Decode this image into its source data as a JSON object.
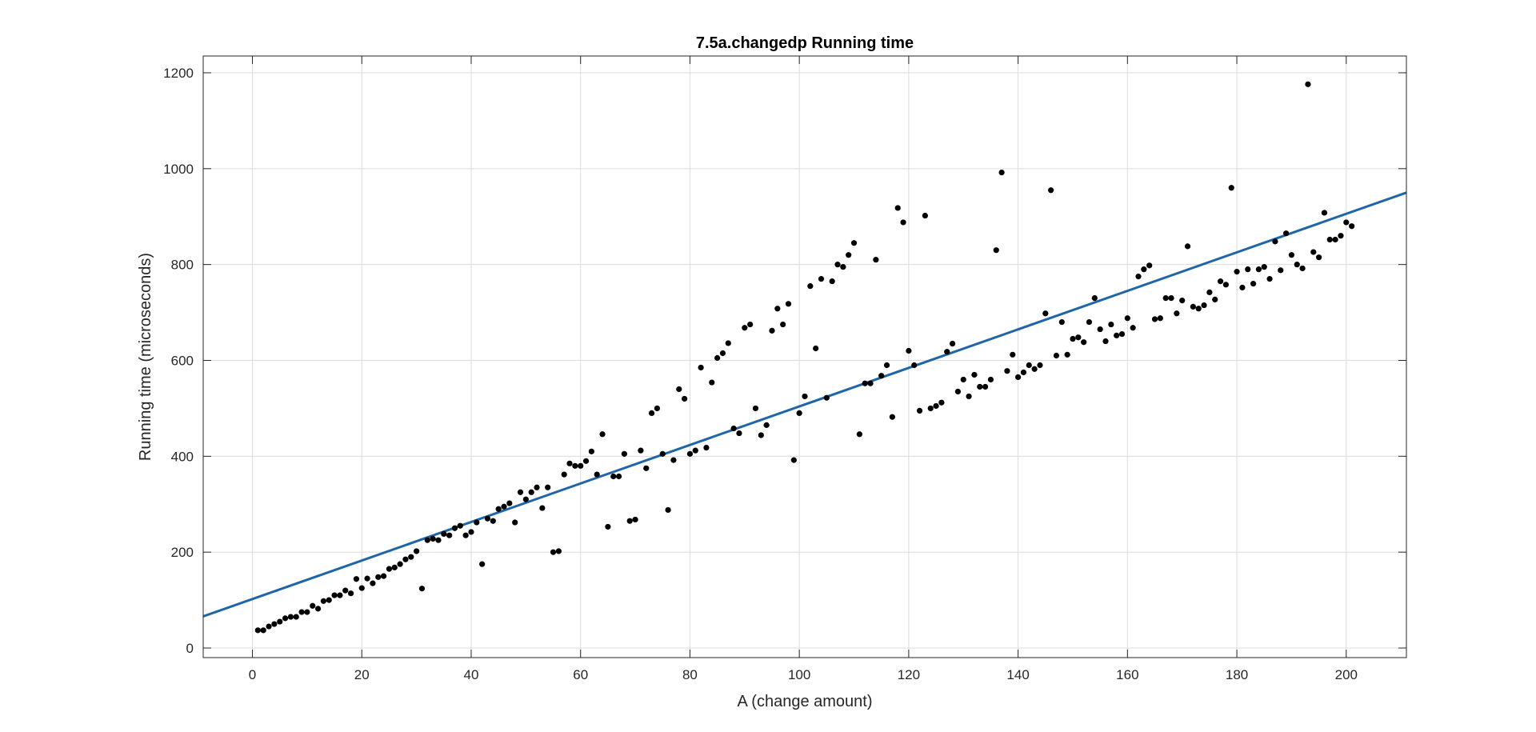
{
  "chart_data": {
    "type": "scatter",
    "title": "7.5a.changedp Running time",
    "xlabel": "A (change amount)",
    "ylabel": "Running time (microseconds)",
    "xlim": [
      -9,
      211
    ],
    "ylim": [
      -20,
      1235
    ],
    "xticks": [
      0,
      20,
      40,
      60,
      80,
      100,
      120,
      140,
      160,
      180,
      200
    ],
    "yticks": [
      0,
      200,
      400,
      600,
      800,
      1000,
      1200
    ],
    "grid": true,
    "legend": "none",
    "colors": {
      "points": "#000000",
      "fit_line": "#1f66a8",
      "grid": "#dcdcdc",
      "axes": "#262626"
    },
    "fit_line": {
      "x": [
        -9,
        211
      ],
      "y": [
        66,
        950
      ]
    },
    "points": {
      "x": [
        1,
        2,
        3,
        4,
        5,
        6,
        7,
        8,
        9,
        10,
        11,
        12,
        13,
        14,
        15,
        16,
        17,
        18,
        19,
        20,
        21,
        22,
        23,
        24,
        25,
        26,
        27,
        28,
        29,
        30,
        31,
        32,
        33,
        34,
        35,
        36,
        37,
        38,
        39,
        40,
        41,
        42,
        43,
        44,
        45,
        46,
        47,
        48,
        49,
        50,
        51,
        52,
        53,
        54,
        55,
        56,
        57,
        58,
        59,
        60,
        61,
        62,
        63,
        64,
        65,
        66,
        67,
        68,
        69,
        70,
        71,
        72,
        73,
        74,
        75,
        76,
        77,
        78,
        79,
        80,
        81,
        82,
        83,
        84,
        85,
        86,
        87,
        88,
        89,
        90,
        91,
        92,
        93,
        94,
        95,
        96,
        97,
        98,
        99,
        100,
        101,
        102,
        103,
        104,
        105,
        106,
        107,
        108,
        109,
        110,
        111,
        112,
        113,
        114,
        115,
        116,
        117,
        118,
        119,
        120,
        121,
        122,
        123,
        124,
        125,
        126,
        127,
        128,
        129,
        130,
        131,
        132,
        133,
        134,
        135,
        136,
        137,
        138,
        139,
        140,
        141,
        142,
        143,
        144,
        145,
        146,
        147,
        148,
        149,
        150,
        151,
        152,
        153,
        154,
        155,
        156,
        157,
        158,
        159,
        160,
        161,
        162,
        163,
        164,
        165,
        166,
        167,
        168,
        169,
        170,
        171,
        172,
        173,
        174,
        175,
        176,
        177,
        178,
        179,
        180,
        181,
        182,
        183,
        184,
        185,
        186,
        187,
        188,
        189,
        190,
        191,
        192,
        193,
        194,
        195,
        196,
        197,
        198,
        199,
        200,
        201
      ],
      "y": [
        37,
        37,
        45,
        50,
        55,
        62,
        65,
        65,
        75,
        75,
        88,
        82,
        98,
        100,
        110,
        110,
        120,
        114,
        144,
        125,
        145,
        135,
        148,
        150,
        165,
        168,
        175,
        185,
        190,
        202,
        124,
        225,
        228,
        225,
        238,
        235,
        250,
        255,
        235,
        242,
        262,
        175,
        270,
        265,
        290,
        295,
        302,
        262,
        325,
        310,
        325,
        335,
        292,
        335,
        200,
        202,
        362,
        385,
        380,
        380,
        390,
        410,
        362,
        446,
        253,
        358,
        358,
        405,
        265,
        268,
        412,
        375,
        490,
        500,
        405,
        288,
        392,
        540,
        520,
        405,
        412,
        585,
        418,
        554,
        605,
        615,
        636,
        458,
        448,
        668,
        675,
        500,
        444,
        465,
        662,
        708,
        675,
        718,
        392,
        490,
        525,
        755,
        625,
        770,
        522,
        765,
        800,
        795,
        820,
        845,
        446,
        552,
        552,
        810,
        568,
        590,
        482,
        918,
        888,
        620,
        590,
        495,
        902,
        500,
        505,
        512,
        618,
        635,
        535,
        560,
        525,
        570,
        545,
        545,
        560,
        830,
        992,
        578,
        612,
        565,
        575,
        590,
        582,
        590,
        698,
        955,
        610,
        680,
        612,
        645,
        648,
        638,
        680,
        730,
        665,
        640,
        675,
        652,
        655,
        688,
        668,
        775,
        790,
        798,
        686,
        688,
        730,
        730,
        698,
        725,
        838,
        712,
        708,
        715,
        742,
        727,
        765,
        758,
        960,
        785,
        752,
        790,
        760,
        790,
        795,
        770,
        848,
        788,
        865,
        820,
        800,
        792,
        1176,
        826,
        815,
        908,
        852,
        852,
        860,
        888,
        880
      ]
    }
  }
}
